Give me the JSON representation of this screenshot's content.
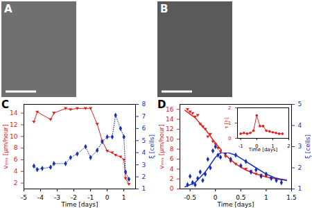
{
  "images": [
    {
      "title": "A"
    },
    {
      "title": "B"
    }
  ],
  "chart_data": [
    {
      "type": "line",
      "title": "C",
      "xlabel": "Time [days]",
      "xlim": [
        -5,
        1.7
      ],
      "xticks": [
        -5,
        -4,
        -3,
        -2,
        -1,
        0,
        1
      ],
      "ylim": [
        1,
        15.5
      ],
      "yticks": [
        2,
        4,
        6,
        8,
        10,
        12,
        14
      ],
      "y2lim": [
        1,
        8
      ],
      "y2ticks": [
        1,
        2,
        3,
        4,
        5,
        6,
        7,
        8
      ],
      "series": [
        {
          "name": "vᵣₘₛ [µm/hour]",
          "color": "#e0201b",
          "marker": "triangle-down",
          "line_style": "solid",
          "x": [
            -4.4,
            -4.2,
            -3.4,
            -3.2,
            -2.5,
            -2.2,
            -1.8,
            -1.3,
            -1.0,
            -0.6,
            -0.3,
            0,
            0.3,
            0.5,
            0.8,
            1.0,
            1.1,
            1.3
          ],
          "values": [
            12.5,
            14.2,
            12.9,
            14,
            14.8,
            14.6,
            14.8,
            14.8,
            14.8,
            12.1,
            9.2,
            7.5,
            7.2,
            6.8,
            6.5,
            6,
            2.8,
            1.8
          ]
        },
        {
          "name": "ξ [cells]",
          "color": "#1a2fb8",
          "marker": "diamond",
          "line_style": "dotted",
          "axis": "y2",
          "x": [
            -4.4,
            -4.2,
            -3.9,
            -3.4,
            -3.2,
            -2.5,
            -2.2,
            -1.8,
            -1.3,
            -1.0,
            -0.6,
            -0.3,
            0,
            0.3,
            0.5,
            0.8,
            1.0,
            1.1,
            1.3
          ],
          "values": [
            2.9,
            2.6,
            2.7,
            2.8,
            3.1,
            3.1,
            3.6,
            3.9,
            4.5,
            3.6,
            4.2,
            4.9,
            5.3,
            5.3,
            7.1,
            6,
            5.3,
            2.4,
            1.8
          ]
        }
      ]
    },
    {
      "type": "scatter",
      "title": "D",
      "xlabel": "Time [days]",
      "xlim": [
        -0.7,
        1.5
      ],
      "xticks": [
        -0.5,
        0,
        0.5,
        1,
        1.5
      ],
      "ylim": [
        0,
        17
      ],
      "yticks": [
        0,
        2,
        4,
        6,
        8,
        10,
        12,
        14,
        16
      ],
      "y2lim": [
        1,
        5
      ],
      "y2ticks": [
        1,
        2,
        3,
        4,
        5
      ],
      "series": [
        {
          "name": "vᵣₘₛ [µm/hour]",
          "color": "#e0201b",
          "marker": "triangle-down",
          "x": [
            -0.55,
            -0.5,
            -0.45,
            -0.4,
            -0.35,
            -0.3,
            -0.25,
            -0.2,
            -0.15,
            -0.1,
            -0.05,
            0,
            0.05,
            0.1,
            0.15,
            0.2,
            0.3,
            0.4,
            0.5,
            0.6,
            0.7,
            0.8,
            0.9,
            1.0,
            1.1,
            1.2,
            1.3
          ],
          "values": [
            16,
            15.5,
            15.2,
            14.5,
            14.8,
            13,
            12.5,
            12,
            10.5,
            11,
            9.5,
            9,
            8.2,
            7.5,
            7.8,
            6.5,
            5.5,
            5,
            4.5,
            4,
            3.5,
            3,
            2.8,
            2.5,
            2.2,
            2.0,
            1.8
          ],
          "fit": {
            "x": [
              -0.6,
              -0.4,
              -0.2,
              0,
              0.2,
              0.4,
              0.6,
              0.8,
              1.0,
              1.2,
              1.4
            ],
            "values": [
              15.8,
              14.3,
              12,
              9.2,
              6.8,
              5,
              3.8,
              3,
              2.4,
              2,
              1.8
            ]
          }
        },
        {
          "name": "ξ [cells]",
          "color": "#1a2fb8",
          "marker": "diamond",
          "axis": "y2",
          "x": [
            -0.55,
            -0.5,
            -0.45,
            -0.4,
            -0.35,
            -0.3,
            -0.25,
            -0.2,
            -0.15,
            -0.1,
            -0.05,
            0,
            0.05,
            0.1,
            0.15,
            0.2,
            0.3,
            0.4,
            0.5,
            0.6,
            0.7,
            0.8,
            0.9,
            1.0,
            1.1,
            1.2,
            1.3
          ],
          "values": [
            1.2,
            1.6,
            1.3,
            1.2,
            1.5,
            1.8,
            1.4,
            1.7,
            2.4,
            2.0,
            2.8,
            3.0,
            2.6,
            2.5,
            3.2,
            2.7,
            2.4,
            2.6,
            2.1,
            2.3,
            1.8,
            1.9,
            1.6,
            1.7,
            1.5,
            1.4,
            1.3
          ],
          "fit": {
            "x": [
              -0.6,
              -0.4,
              -0.2,
              0,
              0.1,
              0.2,
              0.4,
              0.6,
              0.8,
              1.0,
              1.2,
              1.4
            ],
            "values": [
              1.1,
              1.3,
              1.8,
              2.5,
              2.7,
              2.75,
              2.6,
              2.3,
              2.0,
              1.7,
              1.5,
              1.4
            ]
          }
        }
      ],
      "inset": {
        "type": "line",
        "xlabel": "Time [days]",
        "xlim": [
          -1.2,
          2
        ],
        "xticks": [
          -1,
          0,
          1,
          2
        ],
        "ylim": [
          0,
          2
        ],
        "yticks": [
          0,
          1,
          2
        ],
        "series": [
          {
            "name": "τ [h]",
            "color": "#e0201b",
            "marker": "circle",
            "line_style": "solid",
            "x": [
              -1,
              -0.8,
              -0.6,
              -0.4,
              -0.2,
              0,
              0.2,
              0.4,
              0.6,
              0.8,
              1.0,
              1.2,
              1.4,
              1.6
            ],
            "values": [
              0.3,
              0.35,
              0.3,
              0.35,
              0.5,
              1.5,
              0.8,
              0.8,
              0.5,
              0.45,
              0.4,
              0.35,
              0.3,
              0.3
            ]
          }
        ]
      }
    }
  ]
}
